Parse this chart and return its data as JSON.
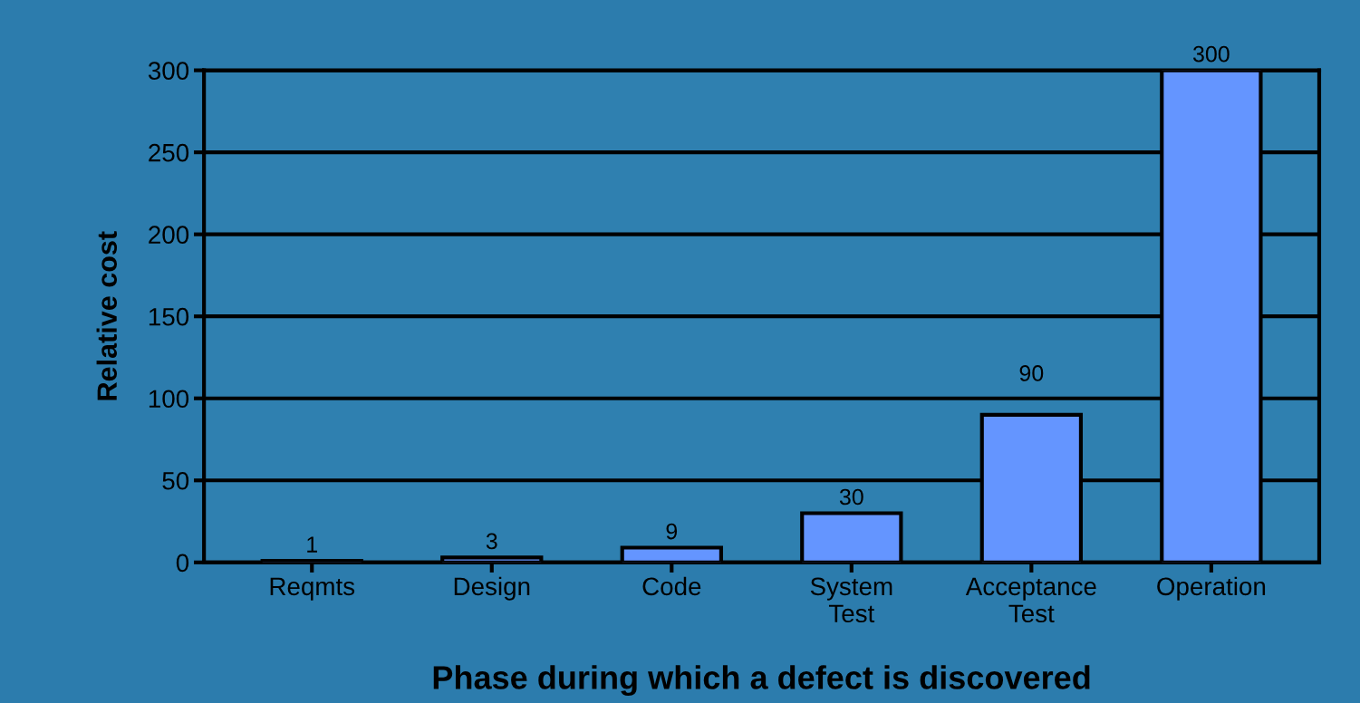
{
  "chart_data": {
    "type": "bar",
    "categories": [
      "Reqmts",
      "Design",
      "Code",
      "System\nTest",
      "Acceptance\nTest",
      "Operation"
    ],
    "values": [
      1,
      3,
      9,
      30,
      90,
      300
    ],
    "color": "#6495ff",
    "xlabel": "Phase during which a defect is discovered",
    "ylabel": "Relative cost",
    "ylim": [
      0,
      300
    ],
    "yticks": [
      0,
      50,
      100,
      150,
      200,
      250,
      300
    ],
    "grid": "y",
    "data_labels": true
  }
}
